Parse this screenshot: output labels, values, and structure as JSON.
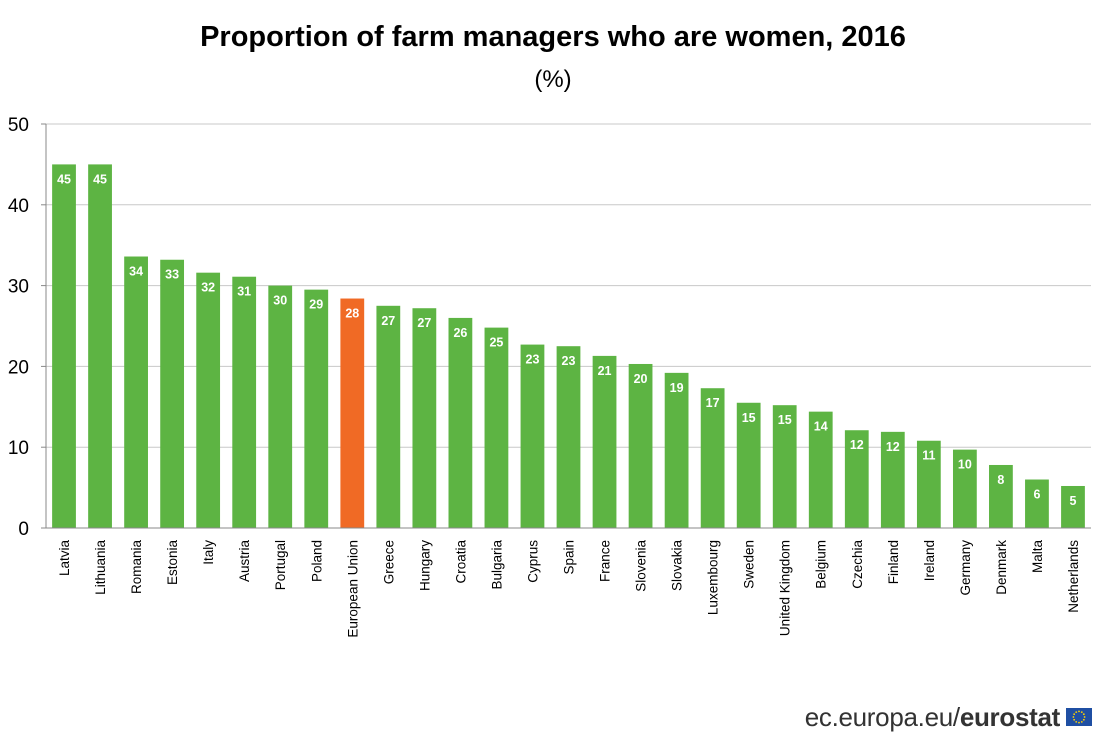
{
  "chart_data": {
    "type": "bar",
    "title": "Proportion of farm managers who are women, 2016",
    "subtitle": "(%)",
    "xlabel": "",
    "ylabel": "",
    "ylim": [
      0,
      50
    ],
    "yticks": [
      0,
      10,
      20,
      30,
      40,
      50
    ],
    "grid": true,
    "categories": [
      "Latvia",
      "Lithuania",
      "Romania",
      "Estonia",
      "Italy",
      "Austria",
      "Portugal",
      "Poland",
      "European Union",
      "Greece",
      "Hungary",
      "Croatia",
      "Bulgaria",
      "Cyprus",
      "Spain",
      "France",
      "Slovenia",
      "Slovakia",
      "Luxembourg",
      "Sweden",
      "United Kingdom",
      "Belgium",
      "Czechia",
      "Finland",
      "Ireland",
      "Germany",
      "Denmark",
      "Malta",
      "Netherlands"
    ],
    "values": [
      45.0,
      45.0,
      33.6,
      33.2,
      31.6,
      31.1,
      30.0,
      29.5,
      28.4,
      27.5,
      27.2,
      26.0,
      24.8,
      22.7,
      22.5,
      21.3,
      20.3,
      19.2,
      17.3,
      15.5,
      15.2,
      14.4,
      12.1,
      11.9,
      10.8,
      9.7,
      7.8,
      6.0,
      5.2
    ],
    "labels": [
      "45",
      "45",
      "34",
      "33",
      "32",
      "31",
      "30",
      "29",
      "28",
      "27",
      "27",
      "26",
      "25",
      "23",
      "23",
      "21",
      "20",
      "19",
      "17",
      "15",
      "15",
      "14",
      "12",
      "12",
      "11",
      "10",
      "8",
      "6",
      "5"
    ],
    "highlight_category": "European Union",
    "colors": {
      "default": "#5db443",
      "highlight": "#f06a25",
      "grid": "#c8c8c8",
      "axis": "#888888"
    }
  },
  "footer": {
    "domain": "ec.europa.eu/",
    "brand": "eurostat"
  },
  "flag": {
    "name": "eu-flag-icon",
    "bg": "#1f4fa3",
    "stars": "#ffd200"
  }
}
